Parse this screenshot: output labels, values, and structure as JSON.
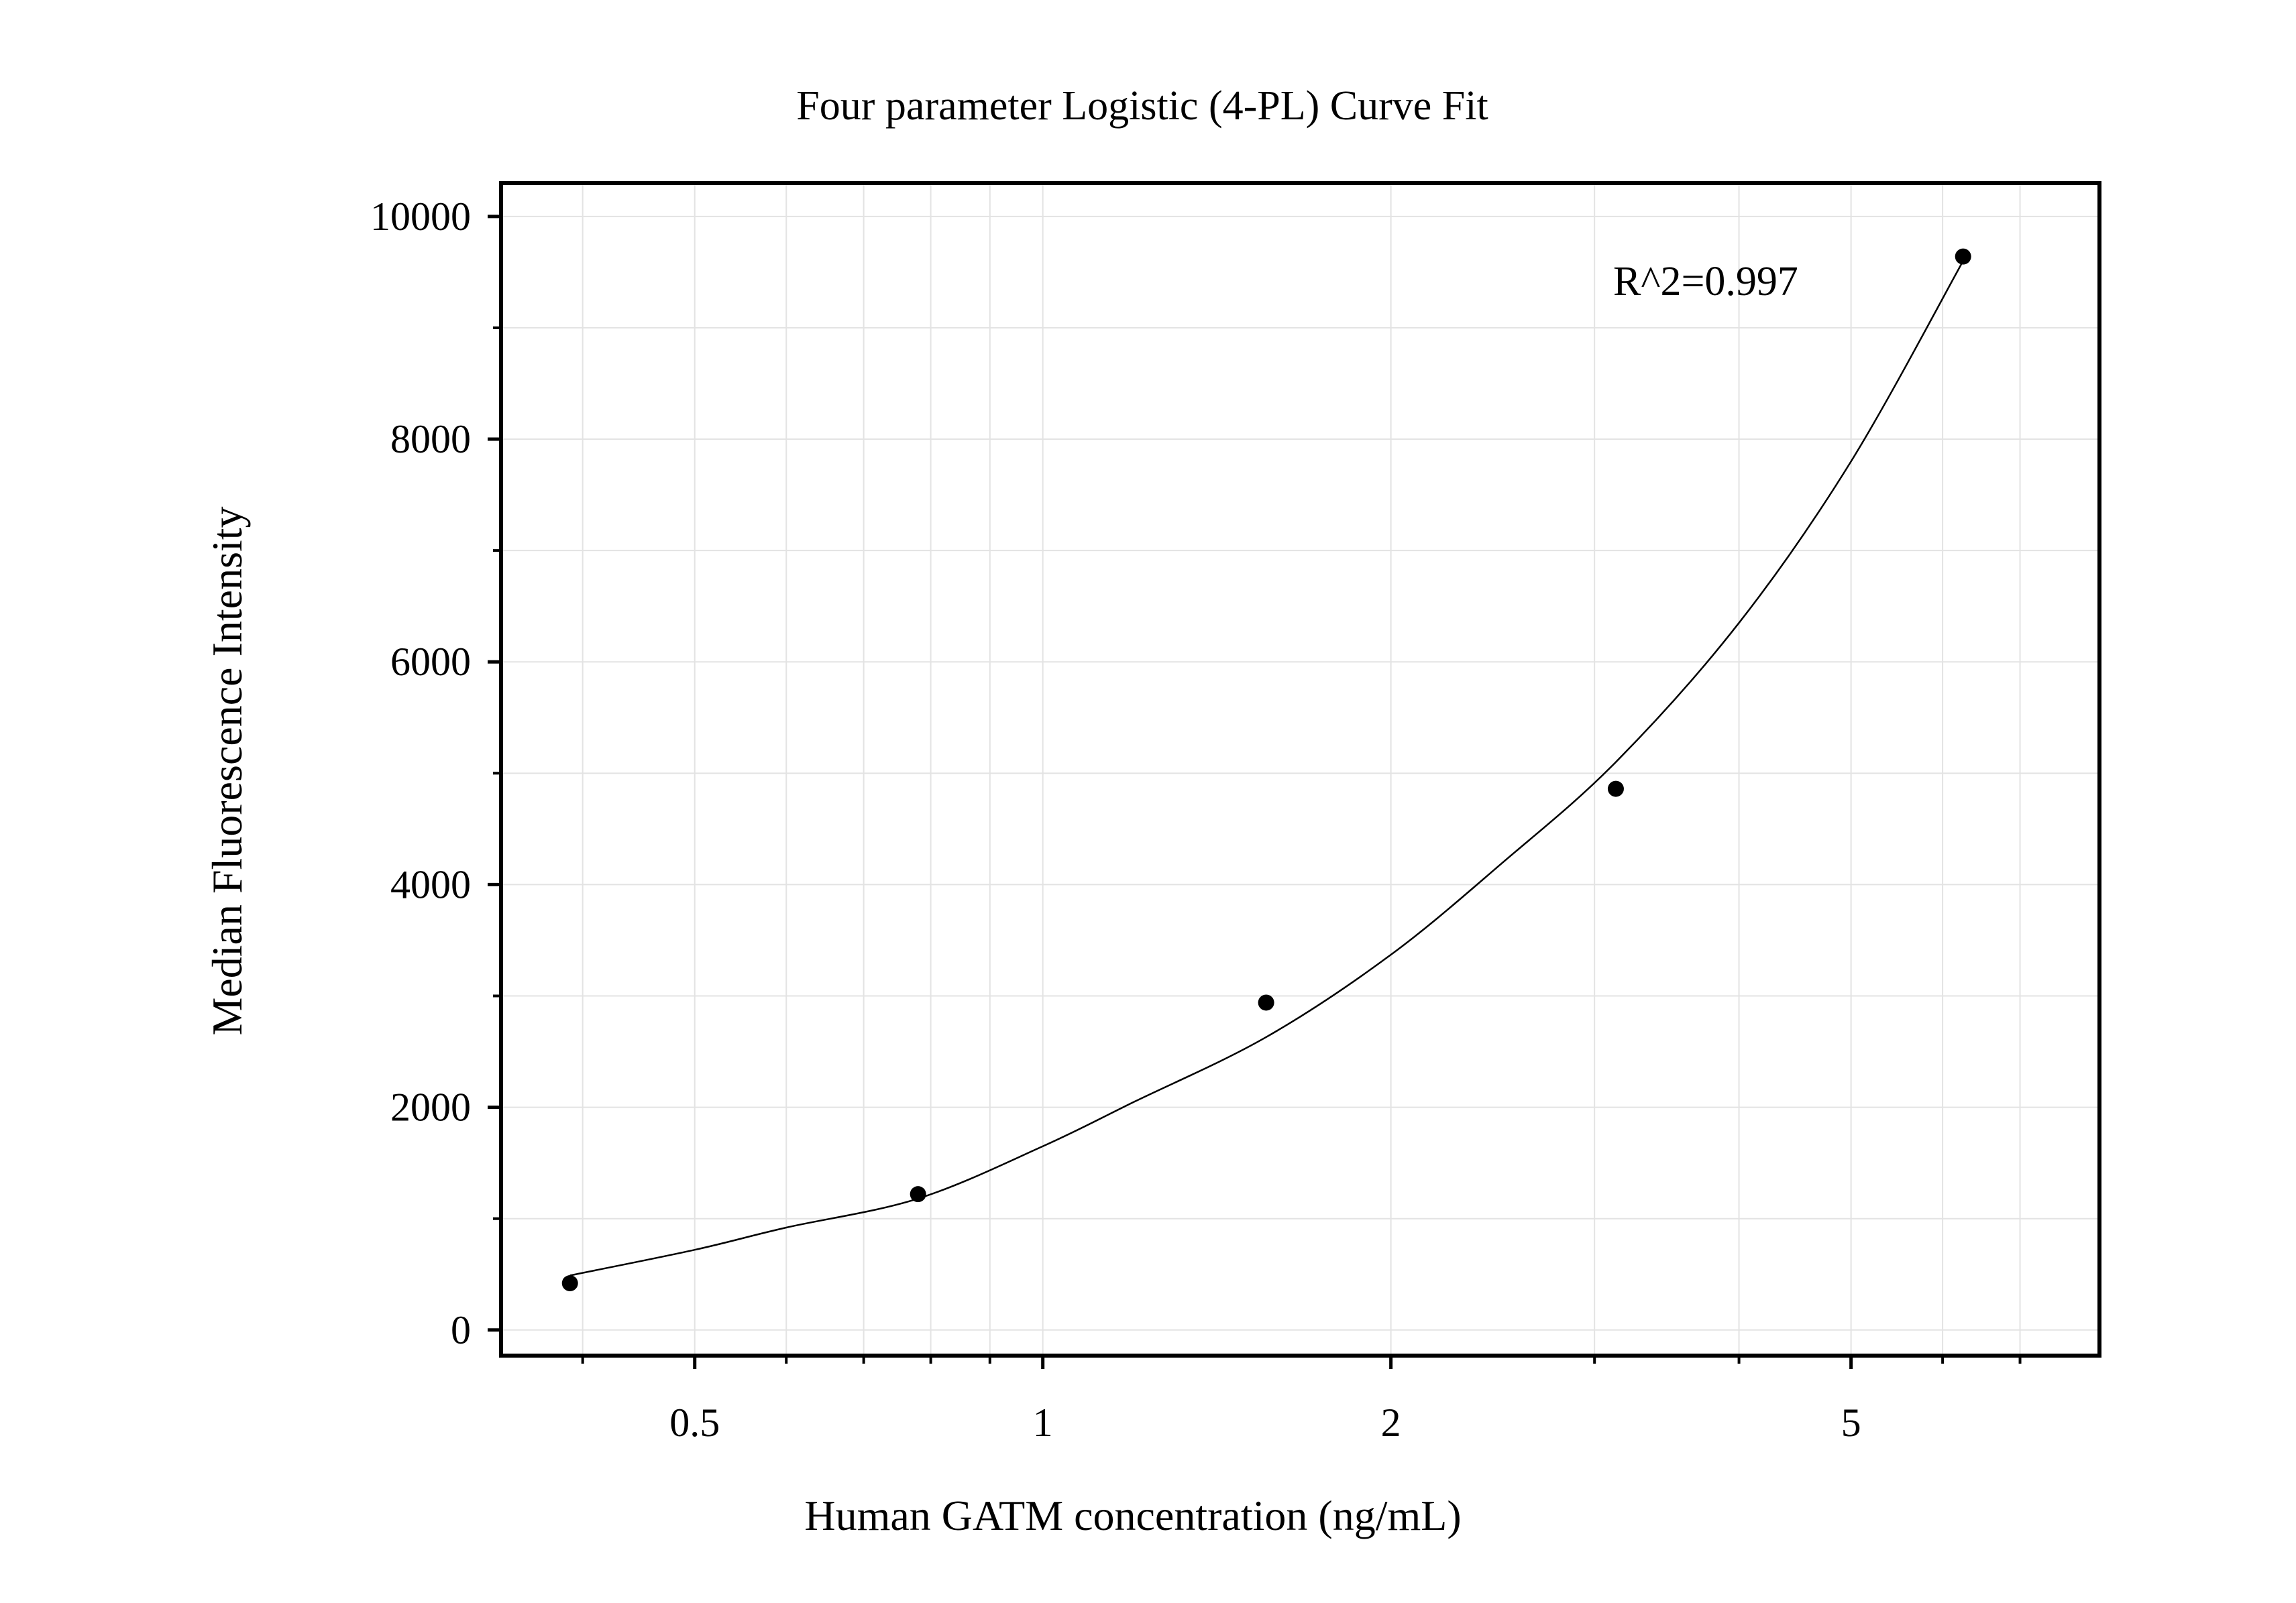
{
  "chart_data": {
    "type": "scatter",
    "title": "Four parameter Logistic (4-PL) Curve Fit",
    "xlabel": "Human GATM concentration (ng/mL)",
    "ylabel": "Median Fluorescence Intensity",
    "x_scale": "log",
    "xlim": [
      0.34,
      8.2
    ],
    "ylim": [
      -230,
      10300
    ],
    "x_ticks": [
      {
        "value": 0.5,
        "label": "0.5"
      },
      {
        "value": 1,
        "label": "1"
      },
      {
        "value": 2,
        "label": "2"
      },
      {
        "value": 5,
        "label": "5"
      }
    ],
    "x_minor_ticks": [
      0.4,
      0.6,
      0.7,
      0.8,
      0.9,
      3,
      4,
      6,
      7
    ],
    "y_ticks": [
      {
        "value": 0,
        "label": "0"
      },
      {
        "value": 2000,
        "label": "2000"
      },
      {
        "value": 4000,
        "label": "4000"
      },
      {
        "value": 6000,
        "label": "6000"
      },
      {
        "value": 8000,
        "label": "8000"
      },
      {
        "value": 10000,
        "label": "10000"
      }
    ],
    "y_minor_ticks": [
      1000,
      3000,
      5000,
      7000,
      9000
    ],
    "grid": true,
    "series": [
      {
        "points": [
          {
            "x": 0.39,
            "y": 420
          },
          {
            "x": 0.78,
            "y": 1220
          },
          {
            "x": 1.56,
            "y": 2940
          },
          {
            "x": 3.13,
            "y": 4860
          },
          {
            "x": 6.25,
            "y": 9640
          }
        ],
        "color": "#000000"
      }
    ],
    "fit_curve": {
      "model": "4-PL",
      "points": [
        {
          "x": 0.39,
          "y": 490
        },
        {
          "x": 0.5,
          "y": 720
        },
        {
          "x": 0.6,
          "y": 920
        },
        {
          "x": 0.78,
          "y": 1180
        },
        {
          "x": 1.0,
          "y": 1650
        },
        {
          "x": 1.2,
          "y": 2050
        },
        {
          "x": 1.56,
          "y": 2630
        },
        {
          "x": 2.0,
          "y": 3370
        },
        {
          "x": 2.5,
          "y": 4200
        },
        {
          "x": 3.13,
          "y": 5100
        },
        {
          "x": 4.0,
          "y": 6350
        },
        {
          "x": 5.0,
          "y": 7800
        },
        {
          "x": 6.25,
          "y": 9600
        }
      ],
      "color": "#000000"
    },
    "annotations": [
      {
        "text": "R^2=0.997",
        "x": 4.0,
        "y": 9350
      }
    ]
  }
}
